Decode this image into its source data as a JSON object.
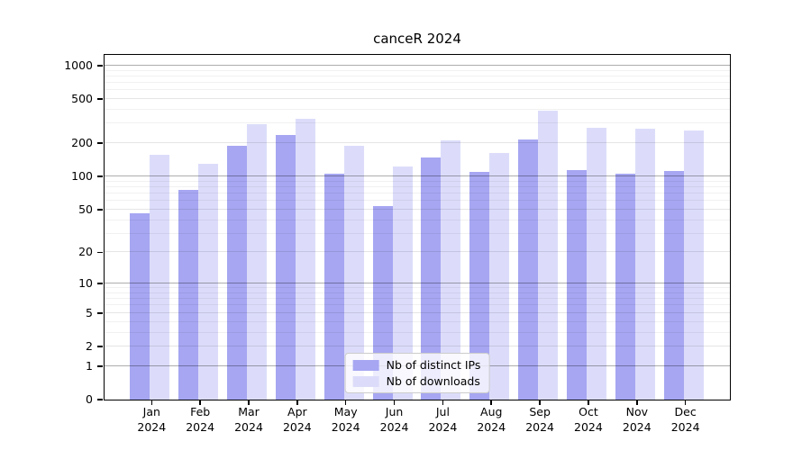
{
  "chart_data": {
    "type": "bar",
    "title": "canceR 2024",
    "scale": "log10(1+x)",
    "ylim": [
      0,
      1247
    ],
    "grid": true,
    "legend_position": "lower center",
    "yticks": [
      0,
      1,
      2,
      5,
      10,
      20,
      50,
      100,
      200,
      500,
      1000
    ],
    "decade_gridlines": [
      1,
      10,
      100,
      1000
    ],
    "mid_gridlines": [
      2,
      5,
      20,
      50,
      200,
      500
    ],
    "minor_gridlines": [
      3,
      4,
      6,
      7,
      8,
      9,
      30,
      40,
      60,
      70,
      80,
      90,
      300,
      400,
      600,
      700,
      800,
      900
    ],
    "categories": [
      "Jan",
      "Feb",
      "Mar",
      "Apr",
      "May",
      "Jun",
      "Jul",
      "Aug",
      "Sep",
      "Oct",
      "Nov",
      "Dec"
    ],
    "year": "2024",
    "series": [
      {
        "name": "Nb of distinct IPs",
        "color": "#a6a6f2",
        "values": [
          46,
          75,
          191,
          238,
          106,
          54,
          149,
          111,
          217,
          114,
          105,
          113
        ]
      },
      {
        "name": "Nb of downloads",
        "color": "#dcdcfa",
        "values": [
          158,
          131,
          295,
          330,
          188,
          122,
          212,
          162,
          390,
          275,
          271,
          260
        ]
      }
    ],
    "colors": {
      "axis": "#000000",
      "grid_major": "#b0b0b0",
      "grid_mid": "#e6e6e6",
      "grid_minor": "#f1f1f1",
      "legend_border": "#cccccc"
    }
  }
}
